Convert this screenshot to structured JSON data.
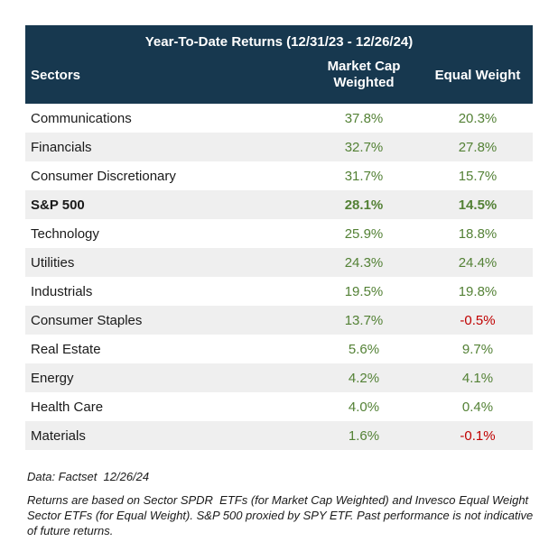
{
  "table": {
    "title": "Year-To-Date Returns (12/31/23 - 12/26/24)",
    "columns": {
      "sectors": "Sectors",
      "market_cap_weighted": "Market Cap Weighted",
      "equal_weight": "Equal Weight"
    },
    "rows": [
      {
        "sector": "Communications",
        "mcw": "37.8%",
        "ew": "20.3%",
        "bold": false
      },
      {
        "sector": "Financials",
        "mcw": "32.7%",
        "ew": "27.8%",
        "bold": false
      },
      {
        "sector": "Consumer Discretionary",
        "mcw": "31.7%",
        "ew": "15.7%",
        "bold": false
      },
      {
        "sector": "S&P 500",
        "mcw": "28.1%",
        "ew": "14.5%",
        "bold": true
      },
      {
        "sector": "Technology",
        "mcw": "25.9%",
        "ew": "18.8%",
        "bold": false
      },
      {
        "sector": "Utilities",
        "mcw": "24.3%",
        "ew": "24.4%",
        "bold": false
      },
      {
        "sector": "Industrials",
        "mcw": "19.5%",
        "ew": "19.8%",
        "bold": false
      },
      {
        "sector": "Consumer Staples",
        "mcw": "13.7%",
        "ew": "-0.5%",
        "bold": false
      },
      {
        "sector": "Real Estate",
        "mcw": "5.6%",
        "ew": "9.7%",
        "bold": false
      },
      {
        "sector": "Energy",
        "mcw": "4.2%",
        "ew": "4.1%",
        "bold": false
      },
      {
        "sector": "Health Care",
        "mcw": "4.0%",
        "ew": "0.4%",
        "bold": false
      },
      {
        "sector": "Materials",
        "mcw": "1.6%",
        "ew": "-0.1%",
        "bold": false
      }
    ]
  },
  "footer": {
    "source": "Data: Factset  12/26/24",
    "disclaimer": "Returns are based on Sector SPDR  ETFs (for Market Cap Weighted) and Invesco Equal Weight Sector ETFs (for Equal Weight). S&P 500 proxied by SPY ETF. Past performance is not indicative of future returns."
  },
  "colors": {
    "header_bg": "#17384f",
    "header_text": "#ffffff",
    "positive_value": "#538135",
    "negative_value": "#c00000",
    "alt_row_bg": "#efefef"
  },
  "chart_data": {
    "type": "table",
    "title": "Year-To-Date Returns (12/31/23 - 12/26/24)",
    "columns": [
      "Sectors",
      "Market Cap Weighted",
      "Equal Weight"
    ],
    "units": "percent",
    "rows": [
      [
        "Communications",
        37.8,
        20.3
      ],
      [
        "Financials",
        32.7,
        27.8
      ],
      [
        "Consumer Discretionary",
        31.7,
        15.7
      ],
      [
        "S&P 500",
        28.1,
        14.5
      ],
      [
        "Technology",
        25.9,
        18.8
      ],
      [
        "Utilities",
        24.3,
        24.4
      ],
      [
        "Industrials",
        19.5,
        19.8
      ],
      [
        "Consumer Staples",
        13.7,
        -0.5
      ],
      [
        "Real Estate",
        5.6,
        9.7
      ],
      [
        "Energy",
        4.2,
        4.1
      ],
      [
        "Health Care",
        4.0,
        0.4
      ],
      [
        "Materials",
        1.6,
        -0.1
      ]
    ],
    "notes": "Positive values shown in green, negative values in red; S&P 500 row bolded as benchmark."
  }
}
